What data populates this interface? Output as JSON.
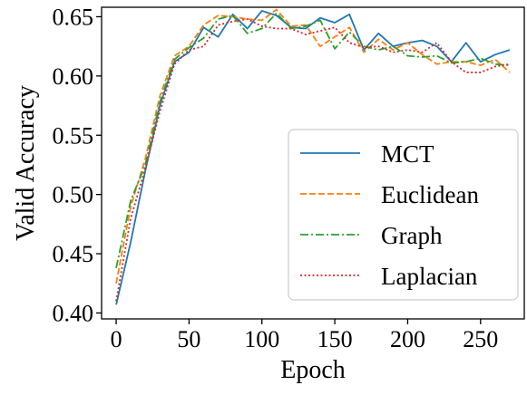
{
  "chart_data": {
    "type": "line",
    "xlabel": "Epoch",
    "ylabel": "Valid Accuracy",
    "xlim": [
      -10,
      280
    ],
    "ylim": [
      0.395,
      0.658
    ],
    "xticks": [
      0,
      50,
      100,
      150,
      200,
      250
    ],
    "yticks": [
      0.4,
      0.45,
      0.5,
      0.55,
      0.6,
      0.65
    ],
    "xtick_labels": [
      "0",
      "50",
      "100",
      "150",
      "200",
      "250"
    ],
    "ytick_labels": [
      "0.40",
      "0.45",
      "0.50",
      "0.55",
      "0.60",
      "0.65"
    ],
    "grid": false,
    "legend_position": "lower-right",
    "x": [
      0,
      10,
      20,
      30,
      40,
      50,
      60,
      70,
      80,
      90,
      100,
      110,
      120,
      130,
      140,
      150,
      160,
      170,
      180,
      190,
      200,
      210,
      220,
      230,
      240,
      250,
      260,
      270
    ],
    "series": [
      {
        "name": "MCT",
        "color": "#1f77b4",
        "style": "solid",
        "values": [
          0.407,
          0.46,
          0.52,
          0.575,
          0.612,
          0.62,
          0.641,
          0.633,
          0.652,
          0.64,
          0.655,
          0.651,
          0.641,
          0.64,
          0.649,
          0.645,
          0.652,
          0.622,
          0.636,
          0.625,
          0.628,
          0.63,
          0.625,
          0.612,
          0.628,
          0.612,
          0.618,
          0.622
        ]
      },
      {
        "name": "Euclidean",
        "color": "#ff7f0e",
        "style": "dashed",
        "values": [
          0.425,
          0.49,
          0.53,
          0.583,
          0.617,
          0.625,
          0.643,
          0.651,
          0.65,
          0.648,
          0.647,
          0.656,
          0.642,
          0.643,
          0.625,
          0.633,
          0.641,
          0.62,
          0.631,
          0.622,
          0.628,
          0.618,
          0.61,
          0.612,
          0.612,
          0.609,
          0.614,
          0.603
        ]
      },
      {
        "name": "Graph",
        "color": "#2ca02c",
        "style": "dashdot",
        "values": [
          0.438,
          0.495,
          0.525,
          0.578,
          0.614,
          0.624,
          0.632,
          0.648,
          0.651,
          0.636,
          0.64,
          0.653,
          0.64,
          0.642,
          0.647,
          0.623,
          0.637,
          0.625,
          0.622,
          0.625,
          0.617,
          0.616,
          0.617,
          0.611,
          0.612,
          0.615,
          0.61,
          0.609
        ]
      },
      {
        "name": "Laplacian",
        "color": "#d62728",
        "style": "dotted",
        "values": [
          0.41,
          0.48,
          0.522,
          0.57,
          0.61,
          0.622,
          0.625,
          0.643,
          0.646,
          0.648,
          0.642,
          0.64,
          0.64,
          0.635,
          0.638,
          0.641,
          0.628,
          0.624,
          0.625,
          0.62,
          0.622,
          0.62,
          0.628,
          0.612,
          0.603,
          0.603,
          0.608,
          0.61
        ]
      }
    ]
  }
}
